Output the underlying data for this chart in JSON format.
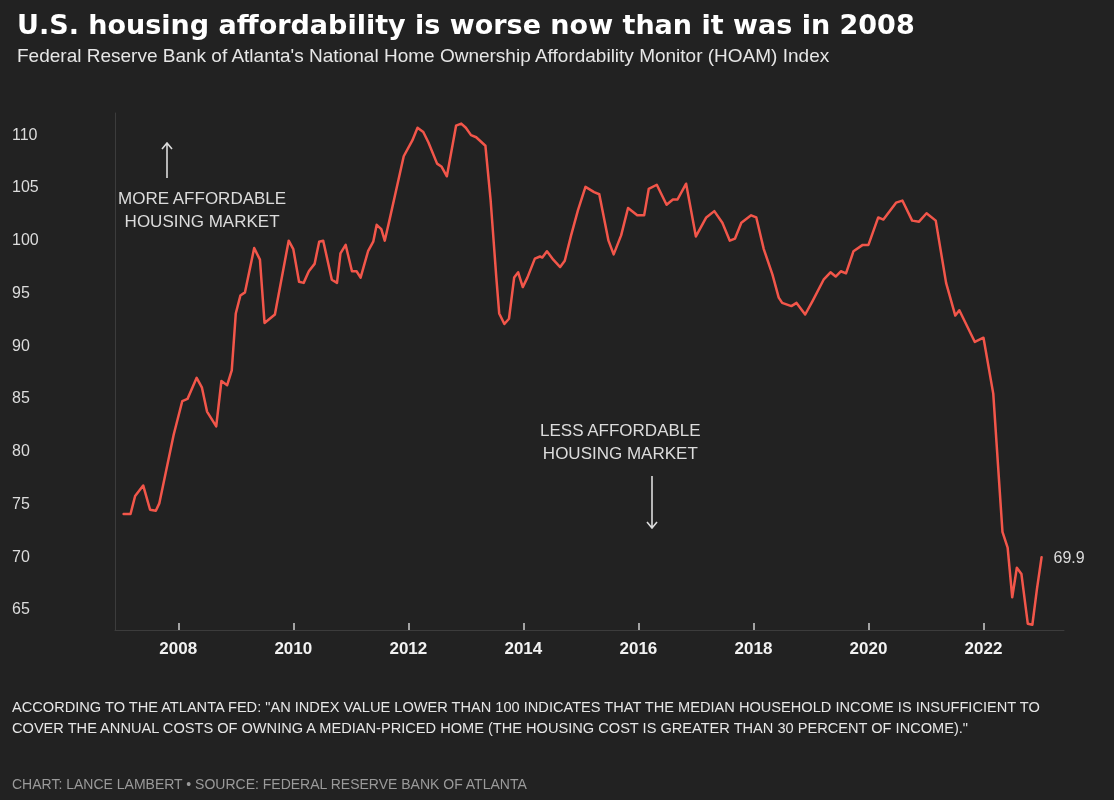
{
  "chart_data": {
    "type": "line",
    "title": "U.S. housing affordability is worse now than it was in 2008",
    "subtitle": "Federal Reserve Bank of Atlanta's National Home Ownership Affordability Monitor (HOAM) Index",
    "annotations": [
      "MORE AFFORDABLE\nHOUSING MARKET",
      "LESS AFFORDABLE\nHOUSING MARKET",
      "ACCORDING TO THE ATLANTA FED: \"AN INDEX VALUE LOWER THAN 100 INDICATES THAT THE MEDIAN HOUSEHOLD INCOME IS INSUFFICIENT TO COVER THE ANNUAL COSTS OF OWNING A MEDIAN-PRICED HOME (THE HOUSING COST IS GREATER THAN 30 PERCENT OF INCOME).\"",
      "CHART: LANCE LAMBERT • SOURCE: FEDERAL RESERVE BANK OF ATLANTA"
    ],
    "x": [
      2007.05,
      2007.17,
      2007.25,
      2007.39,
      2007.51,
      2007.61,
      2007.67,
      2007.92,
      2008.07,
      2008.16,
      2008.32,
      2008.41,
      2008.5,
      2008.66,
      2008.75,
      2008.85,
      2008.93,
      2009.0,
      2009.08,
      2009.16,
      2009.32,
      2009.42,
      2009.5,
      2009.68,
      2009.92,
      2010.0,
      2010.1,
      2010.18,
      2010.27,
      2010.37,
      2010.45,
      2010.52,
      2010.67,
      2010.76,
      2010.82,
      2010.91,
      2011.02,
      2011.1,
      2011.17,
      2011.3,
      2011.39,
      2011.45,
      2011.53,
      2011.59,
      2011.67,
      2011.92,
      2012.07,
      2012.16,
      2012.26,
      2012.35,
      2012.5,
      2012.58,
      2012.67,
      2012.83,
      2012.92,
      2013.0,
      2013.09,
      2013.18,
      2013.34,
      2013.43,
      2013.53,
      2013.58,
      2013.67,
      2013.75,
      2013.84,
      2013.91,
      2013.99,
      2014.07,
      2014.2,
      2014.29,
      2014.33,
      2014.41,
      2014.52,
      2014.64,
      2014.72,
      2014.83,
      2014.95,
      2015.08,
      2015.23,
      2015.32,
      2015.48,
      2015.57,
      2015.7,
      2015.82,
      2015.98,
      2016.1,
      2016.18,
      2016.32,
      2016.49,
      2016.6,
      2016.68,
      2016.83,
      2017.0,
      2017.18,
      2017.32,
      2017.46,
      2017.59,
      2017.68,
      2017.79,
      2017.96,
      2018.05,
      2018.18,
      2018.33,
      2018.44,
      2018.5,
      2018.66,
      2018.75,
      2018.9,
      2019.03,
      2019.22,
      2019.34,
      2019.43,
      2019.52,
      2019.61,
      2019.74,
      2019.9,
      2020.0,
      2020.17,
      2020.26,
      2020.48,
      2020.59,
      2020.76,
      2020.88,
      2021.01,
      2021.17,
      2021.35,
      2021.51,
      2021.58,
      2021.85,
      2022.0,
      2022.17,
      2022.33,
      2022.42,
      2022.5,
      2022.58,
      2022.66,
      2022.77,
      2022.85,
      2022.93,
      2023.01
    ],
    "series": [
      {
        "color": "#f2564a",
        "values": [
          74.0,
          74.0,
          75.7,
          76.7,
          74.4,
          74.3,
          75.0,
          81.5,
          84.7,
          84.9,
          86.9,
          86.0,
          83.7,
          82.3,
          86.6,
          86.2,
          87.6,
          93.0,
          94.7,
          95.0,
          99.2,
          98.1,
          92.1,
          92.9,
          99.9,
          99.1,
          96.0,
          95.9,
          97.0,
          97.7,
          99.8,
          99.9,
          96.2,
          95.9,
          98.7,
          99.5,
          97.0,
          97.0,
          96.4,
          98.9,
          99.8,
          101.4,
          101.0,
          99.9,
          101.8,
          107.9,
          109.4,
          110.6,
          110.2,
          109.2,
          107.2,
          106.9,
          106.0,
          110.8,
          111.0,
          110.6,
          109.9,
          109.7,
          108.9,
          103.8,
          96.4,
          93.0,
          92.0,
          92.5,
          96.4,
          96.9,
          95.5,
          96.4,
          98.2,
          98.4,
          98.3,
          98.9,
          98.1,
          97.4,
          98.0,
          100.4,
          102.8,
          105.0,
          104.5,
          104.3,
          99.9,
          98.6,
          100.4,
          103.0,
          102.3,
          102.3,
          104.8,
          105.2,
          103.3,
          103.8,
          103.8,
          105.3,
          100.3,
          102.1,
          102.7,
          101.6,
          99.9,
          100.1,
          101.6,
          102.3,
          102.1,
          99.1,
          96.7,
          94.5,
          94.0,
          93.7,
          94.0,
          92.9,
          94.2,
          96.2,
          96.9,
          96.5,
          97.0,
          96.8,
          98.9,
          99.5,
          99.5,
          102.1,
          101.9,
          103.5,
          103.7,
          101.8,
          101.7,
          102.5,
          101.8,
          95.9,
          92.8,
          93.3,
          90.3,
          90.7,
          85.4,
          72.3,
          70.8,
          66.1,
          68.9,
          68.3,
          63.6,
          63.5,
          66.9,
          69.9
        ],
        "value_labels": [
          null,
          null,
          null,
          null,
          null,
          null,
          null,
          null,
          null,
          null,
          null,
          null,
          null,
          null,
          null,
          null,
          null,
          null,
          null,
          null,
          null,
          null,
          null,
          null,
          null,
          null,
          null,
          null,
          null,
          null,
          null,
          null,
          null,
          null,
          null,
          null,
          null,
          null,
          null,
          null,
          null,
          null,
          null,
          null,
          null,
          null,
          null,
          null,
          null,
          null,
          null,
          null,
          null,
          null,
          null,
          null,
          null,
          null,
          null,
          null,
          null,
          null,
          null,
          null,
          null,
          null,
          null,
          null,
          null,
          null,
          null,
          null,
          null,
          null,
          null,
          null,
          null,
          null,
          null,
          null,
          null,
          null,
          null,
          null,
          null,
          null,
          null,
          null,
          null,
          null,
          null,
          null,
          null,
          null,
          null,
          null,
          null,
          null,
          null,
          null,
          null,
          null,
          null,
          null,
          null,
          null,
          null,
          null,
          null,
          null,
          null,
          null,
          null,
          null,
          null,
          null,
          null,
          null,
          null,
          null,
          null,
          null,
          null,
          null,
          null,
          null,
          null,
          null,
          null,
          null,
          null,
          null,
          null,
          null,
          null,
          null,
          null,
          null,
          null,
          "69.9"
        ]
      }
    ],
    "xlim": [
      2006.9,
      2023.4
    ],
    "xticks": [
      2008,
      2010,
      2012,
      2014,
      2016,
      2018,
      2020,
      2022
    ],
    "ylim": [
      63,
      112
    ],
    "yticks": [
      65,
      70,
      75,
      80,
      85,
      90,
      95,
      100,
      105,
      110
    ],
    "grid": false,
    "marker": "none",
    "line_style": "solid"
  }
}
